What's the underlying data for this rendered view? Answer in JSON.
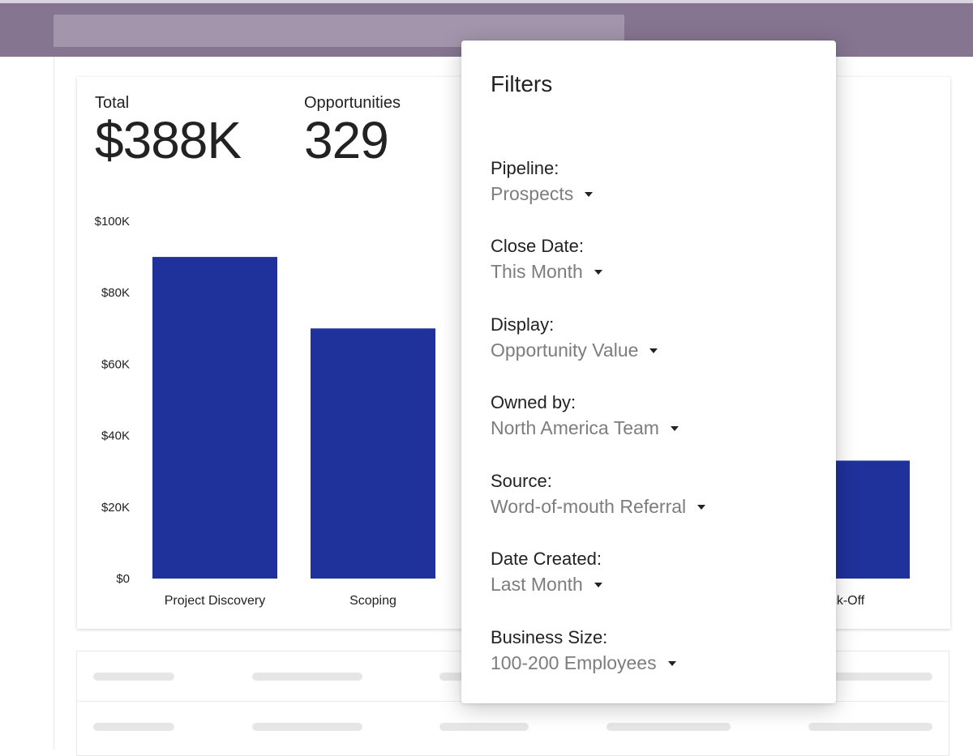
{
  "summary": {
    "total_label": "Total",
    "total_value": "$388K",
    "opportunities_label": "Opportunities",
    "opportunities_value": "329"
  },
  "chart_data": {
    "type": "bar",
    "categories": [
      "Project Discovery",
      "Scoping",
      "",
      "",
      "ck-Off"
    ],
    "values": [
      90,
      70,
      null,
      null,
      33
    ],
    "ylim": [
      0,
      100
    ],
    "y_ticks": [
      "$0",
      "$20K",
      "$40K",
      "$60K",
      "$80K",
      "$100K"
    ],
    "bar_color": "#1f319b",
    "units": "$K"
  },
  "filters": {
    "title": "Filters",
    "items": [
      {
        "label": "Pipeline:",
        "value": "Prospects"
      },
      {
        "label": "Close Date:",
        "value": "This Month"
      },
      {
        "label": "Display:",
        "value": "Opportunity Value"
      },
      {
        "label": "Owned by:",
        "value": "North America Team"
      },
      {
        "label": "Source:",
        "value": "Word-of-mouth Referral"
      },
      {
        "label": "Date Created:",
        "value": "Last Month"
      },
      {
        "label": "Business Size:",
        "value": "100-200 Employees"
      }
    ],
    "caret_icon": "chevron-down-icon"
  },
  "colors": {
    "topbar": "#857590",
    "accent_bar": "#1f319b",
    "muted_text": "#7d7d7d"
  }
}
